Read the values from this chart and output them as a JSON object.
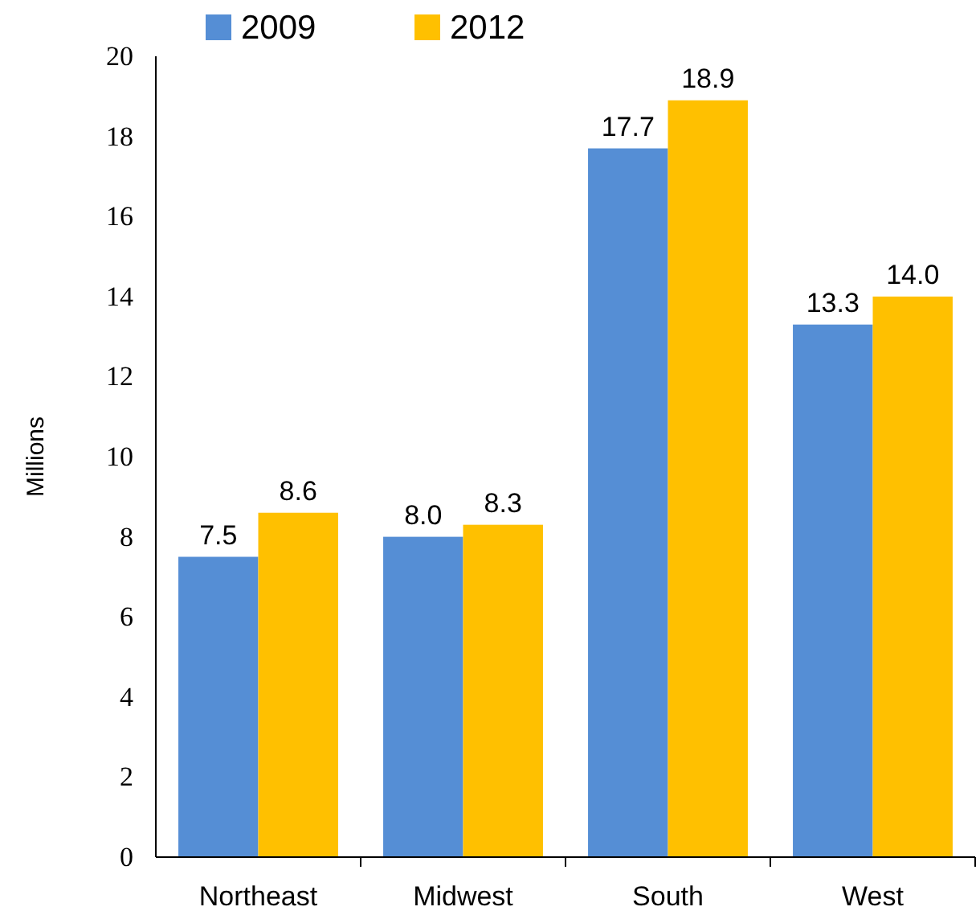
{
  "chart_data": {
    "type": "bar",
    "ylabel": "Millions",
    "categories": [
      "Northeast",
      "Midwest",
      "South",
      "West"
    ],
    "series": [
      {
        "name": "2009",
        "color": "#558ed5",
        "values": [
          7.5,
          8.0,
          17.7,
          13.3
        ],
        "value_labels": [
          "7.5",
          "8.0",
          "17.7",
          "13.3"
        ]
      },
      {
        "name": "2012",
        "color": "#ffc000",
        "values": [
          8.6,
          8.3,
          18.9,
          14.0
        ],
        "value_labels": [
          "8.6",
          "8.3",
          "18.9",
          "14.0"
        ]
      }
    ],
    "ylim": [
      0,
      20
    ],
    "yticks": [
      0,
      2,
      4,
      6,
      8,
      10,
      12,
      14,
      16,
      18,
      20
    ],
    "grid": false,
    "legend": "top"
  }
}
